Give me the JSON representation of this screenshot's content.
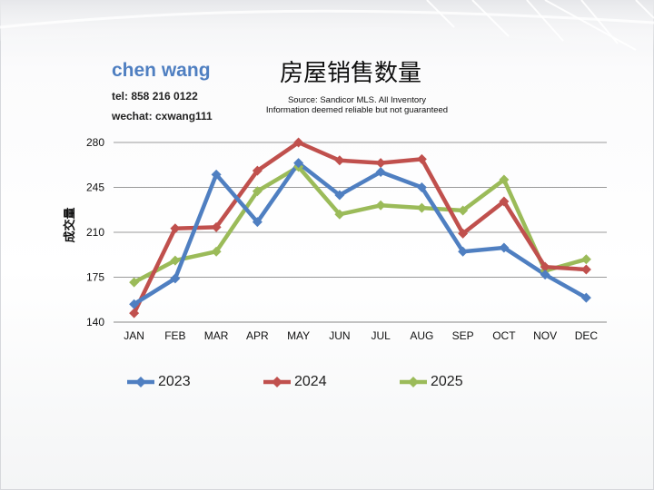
{
  "author": {
    "name": "chen wang",
    "tel": "tel: 858 216 0122",
    "wechat": "wechat: cxwang111"
  },
  "chart_data": {
    "type": "line",
    "title": "房屋销售数量",
    "source_line_1": "Source: Sandicor MLS. All Inventory",
    "source_line_2": "Information deemed reliable but not guaranteed",
    "ylabel": "成交量",
    "xlabel": "",
    "categories": [
      "JAN",
      "FEB",
      "MAR",
      "APR",
      "MAY",
      "JUN",
      "JUL",
      "AUG",
      "SEP",
      "OCT",
      "NOV",
      "DEC"
    ],
    "yticks": [
      140,
      175,
      210,
      245,
      280
    ],
    "ylim": [
      140,
      280
    ],
    "grid": true,
    "legend_position": "bottom",
    "series": [
      {
        "name": "2023",
        "color": "#4f7fc1",
        "values": [
          154,
          174,
          255,
          218,
          264,
          239,
          257,
          245,
          195,
          198,
          177,
          159
        ]
      },
      {
        "name": "2024",
        "color": "#c0504d",
        "values": [
          147,
          213,
          214,
          258,
          280,
          266,
          264,
          267,
          209,
          234,
          183,
          181
        ]
      },
      {
        "name": "2025",
        "color": "#9bbb59",
        "values": [
          171,
          188,
          195,
          242,
          261,
          224,
          231,
          229,
          227,
          251,
          180,
          189
        ]
      }
    ]
  }
}
